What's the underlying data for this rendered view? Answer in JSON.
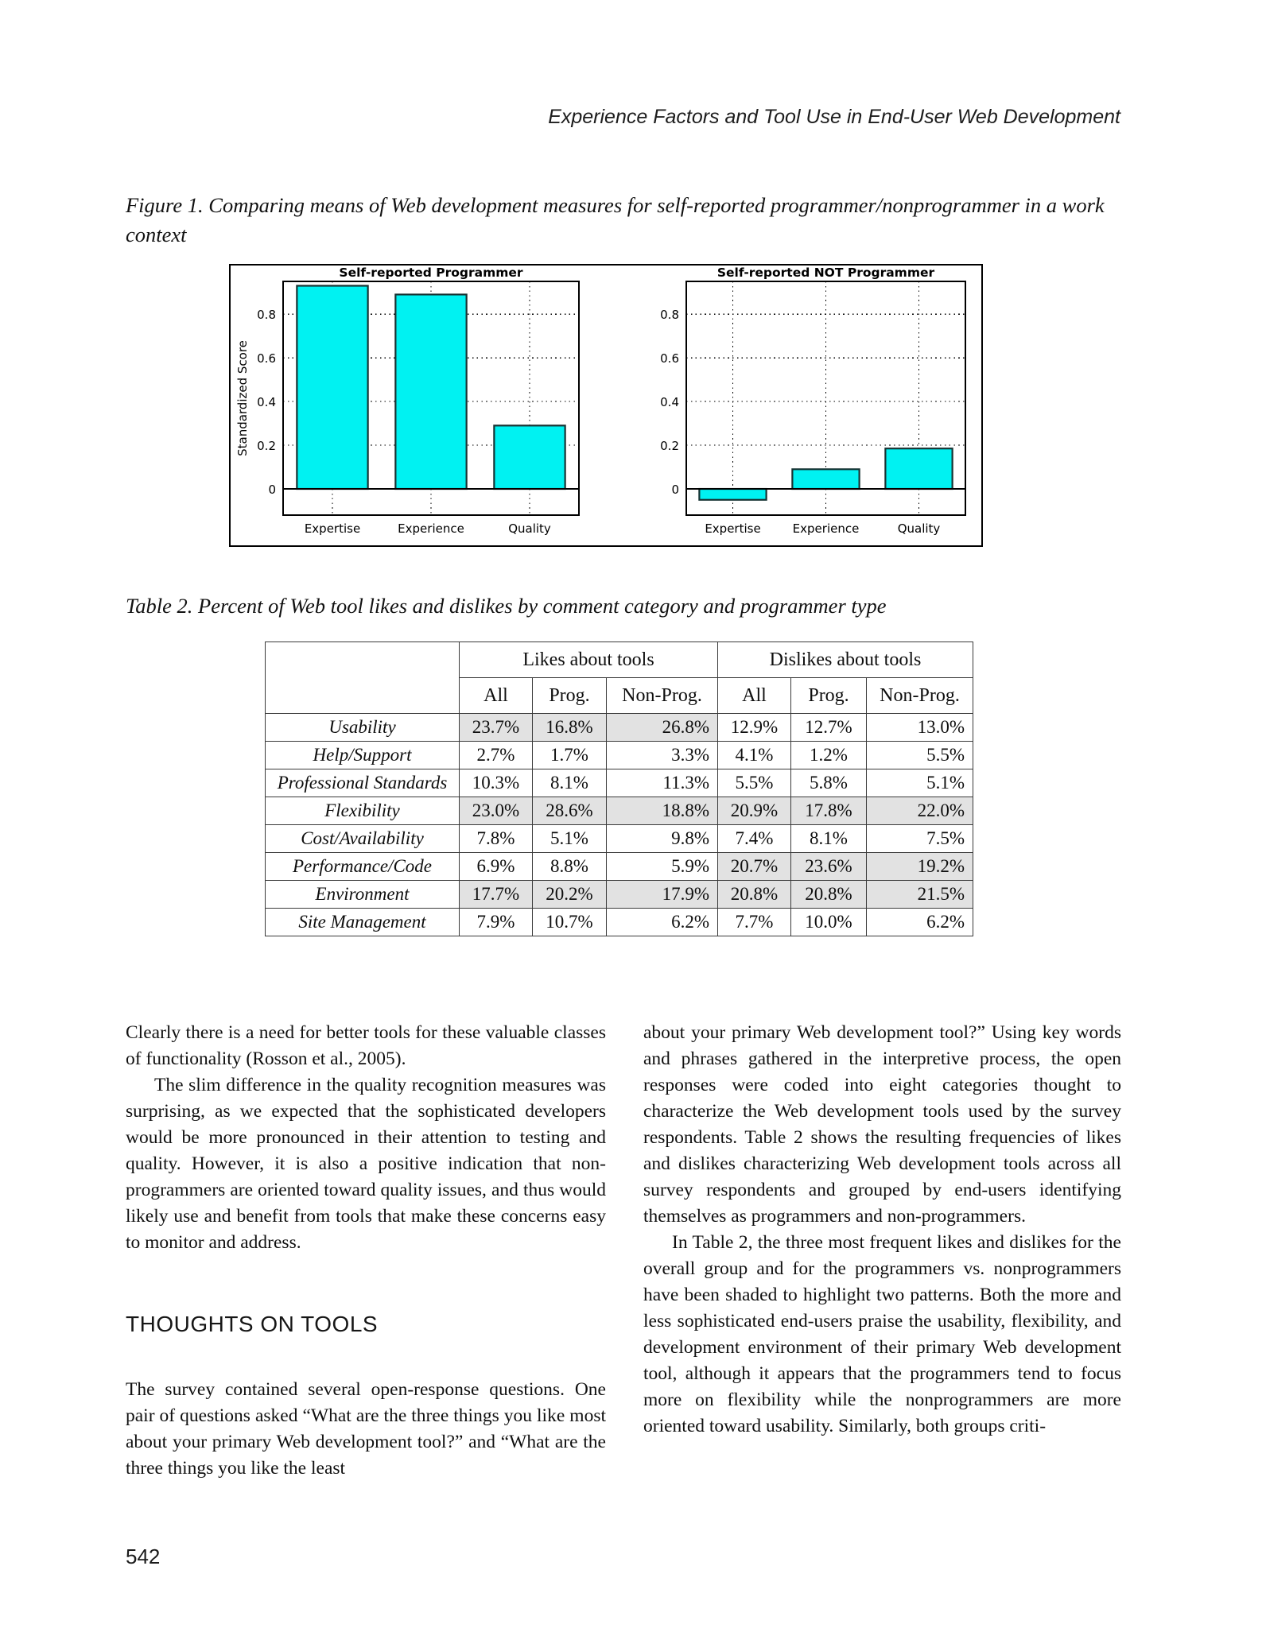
{
  "page": {
    "running_head": "Experience Factors and Tool Use in End-User Web Development",
    "page_number": "542"
  },
  "figure": {
    "caption": "Figure 1. Comparing means of Web development measures for self-reported programmer/nonprogrammer in a work context"
  },
  "chart_data": [
    {
      "type": "bar",
      "title": "Self-reported Programmer",
      "categories": [
        "Expertise",
        "Experience",
        "Quality"
      ],
      "values": [
        0.93,
        0.89,
        0.29
      ],
      "ylabel": "Standardized Score",
      "yticks": [
        0,
        0.2,
        0.4,
        0.6,
        0.8
      ],
      "ylim": [
        -0.12,
        0.95
      ],
      "grid": "dotted",
      "legend": "none",
      "bar_color": "#00f2f2",
      "bar_edge_color": "#173333"
    },
    {
      "type": "bar",
      "title": "Self-reported NOT Programmer",
      "categories": [
        "Expertise",
        "Experience",
        "Quality"
      ],
      "values": [
        -0.05,
        0.09,
        0.185
      ],
      "ylabel": "",
      "yticks": [
        0,
        0.2,
        0.4,
        0.6,
        0.8
      ],
      "ylim": [
        -0.12,
        0.95
      ],
      "grid": "dotted",
      "legend": "none",
      "bar_color": "#00f2f2",
      "bar_edge_color": "#173333"
    }
  ],
  "table": {
    "caption": "Table 2. Percent of Web tool likes and dislikes by comment category and programmer type",
    "group_headers": [
      "Likes about tools",
      "Dislikes about tools"
    ],
    "sub_headers": [
      "All",
      "Prog.",
      "Non-Prog.",
      "All",
      "Prog.",
      "Non-Prog."
    ],
    "shaded_color": "#e2e2e2",
    "rows": [
      {
        "label": "Usability",
        "values": [
          "23.7%",
          "16.8%",
          "26.8%",
          "12.9%",
          "12.7%",
          "13.0%"
        ],
        "shaded_likes": true,
        "shaded_dislikes": false
      },
      {
        "label": "Help/Support",
        "values": [
          "2.7%",
          "1.7%",
          "3.3%",
          "4.1%",
          "1.2%",
          "5.5%"
        ],
        "shaded_likes": false,
        "shaded_dislikes": false
      },
      {
        "label": "Professional Standards",
        "values": [
          "10.3%",
          "8.1%",
          "11.3%",
          "5.5%",
          "5.8%",
          "5.1%"
        ],
        "shaded_likes": false,
        "shaded_dislikes": false
      },
      {
        "label": "Flexibility",
        "values": [
          "23.0%",
          "28.6%",
          "18.8%",
          "20.9%",
          "17.8%",
          "22.0%"
        ],
        "shaded_likes": true,
        "shaded_dislikes": true
      },
      {
        "label": "Cost/Availability",
        "values": [
          "7.8%",
          "5.1%",
          "9.8%",
          "7.4%",
          "8.1%",
          "7.5%"
        ],
        "shaded_likes": false,
        "shaded_dislikes": false
      },
      {
        "label": "Performance/Code",
        "values": [
          "6.9%",
          "8.8%",
          "5.9%",
          "20.7%",
          "23.6%",
          "19.2%"
        ],
        "shaded_likes": false,
        "shaded_dislikes": true
      },
      {
        "label": "Environment",
        "values": [
          "17.7%",
          "20.2%",
          "17.9%",
          "20.8%",
          "20.8%",
          "21.5%"
        ],
        "shaded_likes": true,
        "shaded_dislikes": true
      },
      {
        "label": "Site Management",
        "values": [
          "7.9%",
          "10.7%",
          "6.2%",
          "7.7%",
          "10.0%",
          "6.2%"
        ],
        "shaded_likes": false,
        "shaded_dislikes": false
      }
    ]
  },
  "body": {
    "left_col": {
      "para1": "Clearly there is a need for better tools for these valuable classes of functionality (Rosson et al., 2005).",
      "para2": "The slim difference in the quality recognition measures was surprising, as we expected that the sophisticated developers would be more pronounced in their attention to testing and quality. However, it is also a positive indication that non-programmers are oriented toward quality issues, and thus would likely use and benefit from tools that make these concerns easy to monitor and address.",
      "heading": "THOUGHTS ON TOOLS",
      "para3": "The survey contained several open-response questions. One pair of questions asked “What are the three things you like most about your primary Web development tool?” and “What are the three things you like the least"
    },
    "right_col": {
      "para1": "about your primary Web development tool?” Using key words and phrases gathered in the interpretive process, the open responses were coded into eight categories thought to characterize the Web development tools used by the survey respondents. Table 2 shows the resulting frequencies of likes and dislikes characterizing Web development tools across all survey respondents and grouped by end-users identifying themselves as programmers and non-programmers.",
      "para2": "In Table 2, the three most frequent likes and dislikes for the overall group and for the programmers vs. nonprogrammers have been shaded to highlight two patterns. Both the more and less sophisticated end-users praise the usability, flexibility, and development environment of their primary Web development tool, although it appears that the programmers tend to focus more on flexibility while the nonprogrammers are more oriented toward usability. Similarly, both groups criti-"
    }
  }
}
